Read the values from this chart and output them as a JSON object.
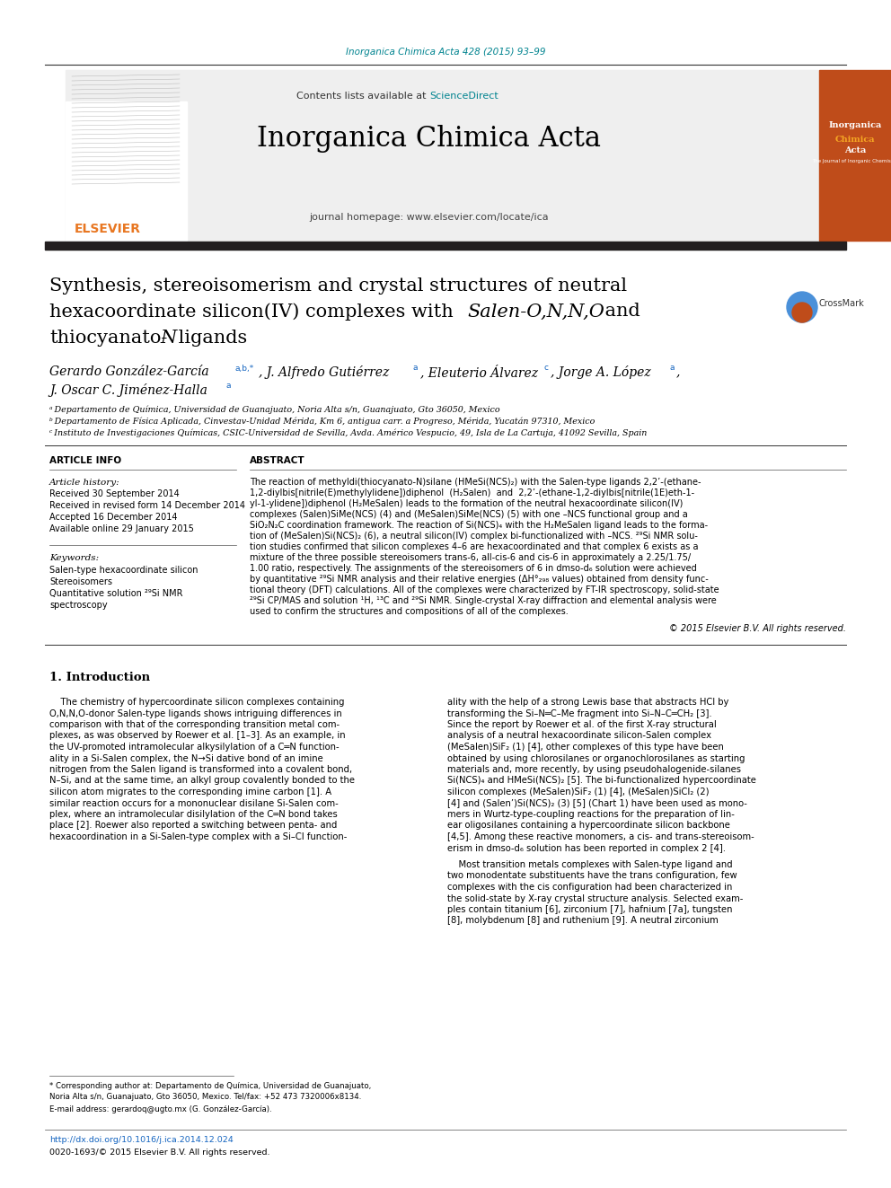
{
  "page_background": "#ffffff",
  "top_link_text": "Inorganica Chimica Acta 428 (2015) 93–99",
  "top_link_color": "#00838f",
  "header_bg": "#efefef",
  "header_contents_text": "Contents lists available at ",
  "header_sciencedirect_text": "ScienceDirect",
  "header_sciencedirect_color": "#00838f",
  "header_journal_name": "Inorganica Chimica Acta",
  "header_journal_homepage": "journal homepage: www.elsevier.com/locate/ica",
  "elsevier_color": "#e87722",
  "thick_bar_color": "#231f20",
  "title_line1": "Synthesis, stereoisomerism and crystal structures of neutral",
  "title_line2_pre": "hexacoordinate silicon(IV) complexes with ",
  "title_italic_part": "Salen-O,N,N,O",
  "title_line2_end": " and",
  "title_line3_pre": "thiocyanato-",
  "title_italic_N": "N",
  "title_line3_end": " ligands",
  "affil_a": "ᵃ Departamento de Química, Universidad de Guanajuato, Noria Alta s/n, Guanajuato, Gto 36050, Mexico",
  "affil_b": "ᵇ Departamento de Física Aplicada, Cinvestav-Unidad Mérida, Km 6, antigua carr. a Progreso, Mérida, Yucatán 97310, Mexico",
  "affil_c": "ᶜ Instituto de Investigaciones Químicas, CSIC-Universidad de Sevilla, Avda. Américo Vespucio, 49, Isla de La Cartuja, 41092 Sevilla, Spain",
  "article_info_header": "ARTICLE INFO",
  "abstract_header": "ABSTRACT",
  "article_history_label": "Article history:",
  "received": "Received 30 September 2014",
  "received_revised": "Received in revised form 14 December 2014",
  "accepted": "Accepted 16 December 2014",
  "available": "Available online 29 January 2015",
  "keywords_label": "Keywords:",
  "keyword1": "Salen-type hexacoordinate silicon",
  "keyword2": "Stereoisomers",
  "keyword3": "Quantitative solution ²⁹Si NMR",
  "keyword4": "spectroscopy",
  "copyright": "© 2015 Elsevier B.V. All rights reserved.",
  "intro_header": "1. Introduction",
  "footnote_line1": "* Corresponding author at: Departamento de Química, Universidad de Guanajuato,",
  "footnote_line2": "Noria Alta s/n, Guanajuato, Gto 36050, Mexico. Tel/fax: +52 473 7320006x8134.",
  "footnote_email": "E-mail address: gerardoq@ugto.mx (G. González-García).",
  "footer_doi": "http://dx.doi.org/10.1016/j.ica.2014.12.024",
  "footer_issn": "0020-1693/© 2015 Elsevier B.V. All rights reserved."
}
